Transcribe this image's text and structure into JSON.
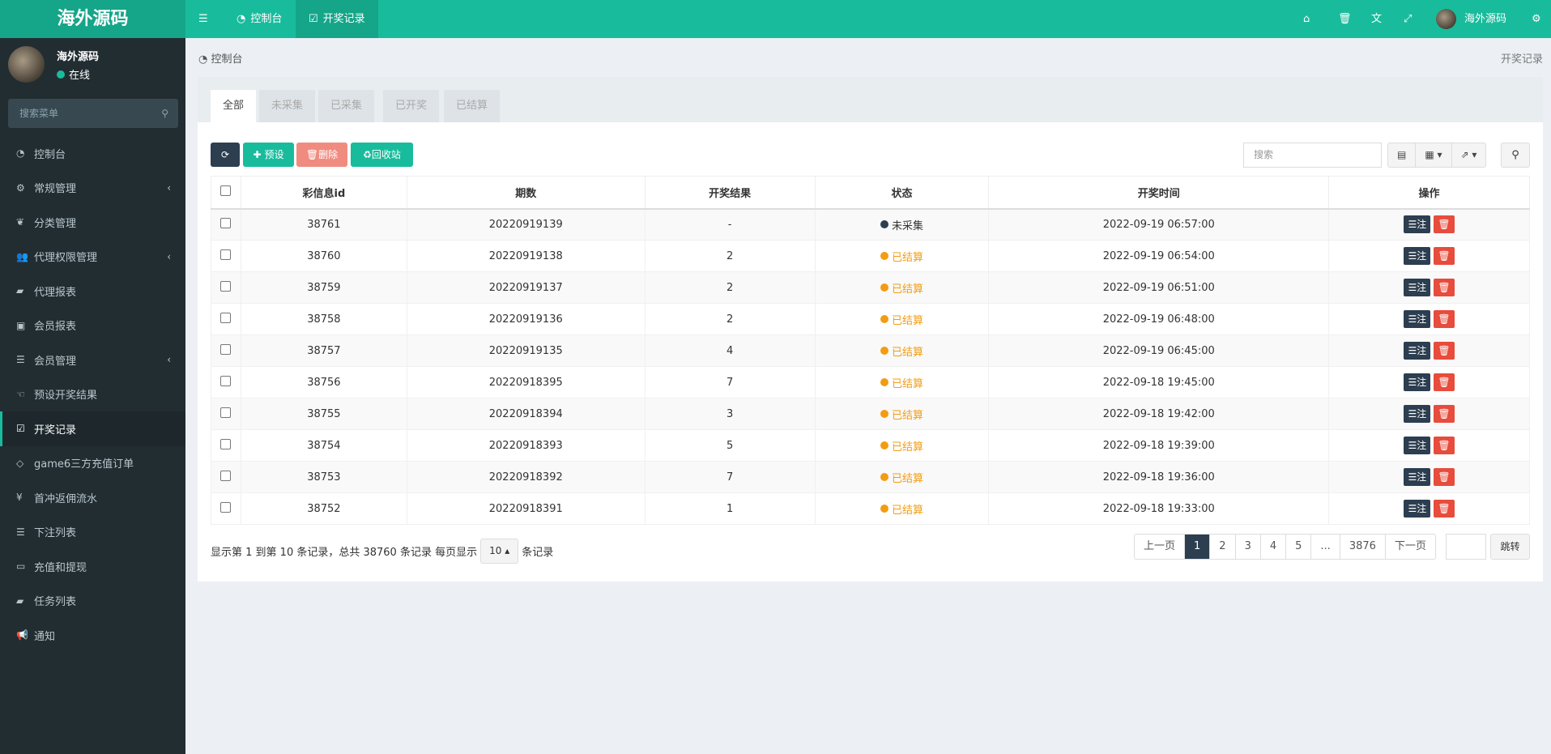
{
  "header": {
    "logo": "海外源码",
    "menu_icon": "bars-icon",
    "tabs": [
      {
        "label": "控制台",
        "icon": "dashboard-icon"
      },
      {
        "label": "开奖记录",
        "icon": "calendar-check-icon"
      }
    ],
    "user": "海外源码",
    "right_icons": [
      "home-icon",
      "trash-icon",
      "translate-icon",
      "fullscreen-icon",
      "cogs-icon"
    ]
  },
  "user": {
    "name": "海外源码",
    "status": "在线",
    "status_color": "#18bc9c"
  },
  "sidebar": {
    "search_placeholder": "搜索菜单",
    "items": [
      {
        "label": "控制台",
        "icon": "dashboard-icon",
        "sub": false
      },
      {
        "label": "常规管理",
        "icon": "cogs-icon",
        "sub": true
      },
      {
        "label": "分类管理",
        "icon": "leaf-icon",
        "sub": false
      },
      {
        "label": "代理权限管理",
        "icon": "users-icon",
        "sub": true
      },
      {
        "label": "代理报表",
        "icon": "book-icon",
        "sub": false
      },
      {
        "label": "会员报表",
        "icon": "contact-icon",
        "sub": false
      },
      {
        "label": "会员管理",
        "icon": "list-icon",
        "sub": true
      },
      {
        "label": "预设开奖结果",
        "icon": "hand-icon",
        "sub": false
      },
      {
        "label": "开奖记录",
        "icon": "calendar-check-icon",
        "sub": false,
        "active": true
      },
      {
        "label": "game6三方充值订单",
        "icon": "diamond-icon",
        "sub": false
      },
      {
        "label": "首冲返佣流水",
        "icon": "yen-icon",
        "sub": false
      },
      {
        "label": "下注列表",
        "icon": "list-icon",
        "sub": false
      },
      {
        "label": "充值和提现",
        "icon": "money-icon",
        "sub": false
      },
      {
        "label": "任务列表",
        "icon": "book-icon",
        "sub": false
      },
      {
        "label": "通知",
        "icon": "bullhorn-icon",
        "sub": false
      }
    ]
  },
  "breadcrumb": {
    "left": "控制台",
    "right": "开奖记录"
  },
  "tabs": [
    "全部",
    "未采集",
    "已采集",
    "已开奖",
    "已结算"
  ],
  "toolbar": {
    "add": "预设",
    "delete": "删除",
    "recycle": "回收站",
    "search_placeholder": "搜索"
  },
  "table": {
    "headers": [
      "彩信息id",
      "期数",
      "开奖结果",
      "状态",
      "开奖时间",
      "操作"
    ],
    "bet_label": "注",
    "rows": [
      {
        "id": "38761",
        "issue": "20220919139",
        "result": "-",
        "status": "未采集",
        "status_color": "#2c3e50",
        "time": "2022-09-19 06:57:00"
      },
      {
        "id": "38760",
        "issue": "20220919138",
        "result": "2",
        "status": "已结算",
        "status_color": "#f39c12",
        "time": "2022-09-19 06:54:00"
      },
      {
        "id": "38759",
        "issue": "20220919137",
        "result": "2",
        "status": "已结算",
        "status_color": "#f39c12",
        "time": "2022-09-19 06:51:00"
      },
      {
        "id": "38758",
        "issue": "20220919136",
        "result": "2",
        "status": "已结算",
        "status_color": "#f39c12",
        "time": "2022-09-19 06:48:00"
      },
      {
        "id": "38757",
        "issue": "20220919135",
        "result": "4",
        "status": "已结算",
        "status_color": "#f39c12",
        "time": "2022-09-19 06:45:00"
      },
      {
        "id": "38756",
        "issue": "20220918395",
        "result": "7",
        "status": "已结算",
        "status_color": "#f39c12",
        "time": "2022-09-18 19:45:00"
      },
      {
        "id": "38755",
        "issue": "20220918394",
        "result": "3",
        "status": "已结算",
        "status_color": "#f39c12",
        "time": "2022-09-18 19:42:00"
      },
      {
        "id": "38754",
        "issue": "20220918393",
        "result": "5",
        "status": "已结算",
        "status_color": "#f39c12",
        "time": "2022-09-18 19:39:00"
      },
      {
        "id": "38753",
        "issue": "20220918392",
        "result": "7",
        "status": "已结算",
        "status_color": "#f39c12",
        "time": "2022-09-18 19:36:00"
      },
      {
        "id": "38752",
        "issue": "20220918391",
        "result": "1",
        "status": "已结算",
        "status_color": "#f39c12",
        "time": "2022-09-18 19:33:00"
      }
    ]
  },
  "pagination": {
    "info_prefix": "显示第 1 到第 10 条记录，总共 38760 条记录 每页显示",
    "page_size": "10",
    "info_suffix": "条记录",
    "prev": "上一页",
    "pages": [
      "1",
      "2",
      "3",
      "4",
      "5",
      "...",
      "3876"
    ],
    "current": "1",
    "next": "下一页",
    "jump": "跳转"
  },
  "colors": {
    "primary": "#18bc9c",
    "dark": "#2c3e50",
    "danger": "#e74c3c",
    "warning": "#f39c12",
    "sidebar": "#222d32"
  }
}
